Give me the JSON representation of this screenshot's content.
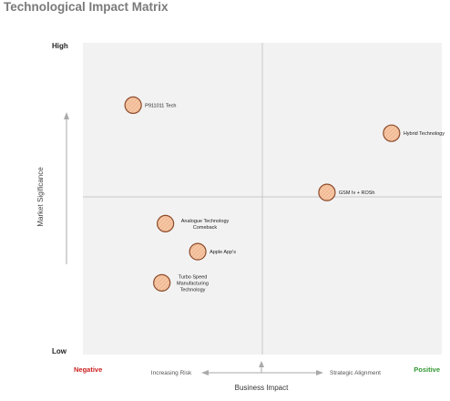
{
  "chart_data": {
    "type": "scatter",
    "title": "Technological Impact Matrix",
    "xlabel": "Business Impact",
    "ylabel": "Market Sigificance",
    "xlim": [
      0,
      100
    ],
    "ylim": [
      0,
      100
    ],
    "y_high_label": "High",
    "y_low_label": "Low",
    "x_negative_label": "Negative",
    "x_positive_label": "Positive",
    "x_left_arrow_label": "Increasing Risk",
    "x_right_arrow_label": "Strategic Alignment",
    "points": [
      {
        "label": "P911011 Tech",
        "x": 14,
        "y": 80
      },
      {
        "label": "Hybrid Technology",
        "x": 86,
        "y": 71
      },
      {
        "label": "GSM Iv + ROSh",
        "x": 68,
        "y": 52
      },
      {
        "label": "Analogue Technology Comeback",
        "x": 23,
        "y": 42
      },
      {
        "label": "Apple App's",
        "x": 32,
        "y": 33
      },
      {
        "label": "Turbo Speed Manufacturing Technology",
        "x": 22,
        "y": 23
      }
    ],
    "colors": {
      "bubble_fill": "#f6c7a4",
      "bubble_stroke": "#8c4a2a",
      "negative": "#cc2222",
      "positive": "#339933",
      "plot_bg": "#f2f2f2",
      "divider": "#c8c8c8"
    }
  }
}
